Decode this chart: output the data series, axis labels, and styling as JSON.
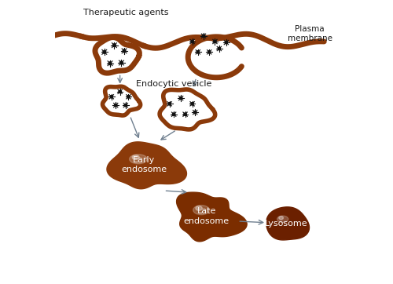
{
  "bg_color": "#ffffff",
  "brown": "#8B3A0A",
  "brown_dark": "#7B2D00",
  "brown_solid": "#6B2000",
  "brown_medium": "#8B3A0A",
  "text_color": "#1a1a1a",
  "arrow_color": "#708090",
  "labels": {
    "therapeutic": "Therapeutic agents",
    "plasma": "Plasma\nmembrane",
    "endocytic": "Endocytic vesicle",
    "early": "Early\nendosome",
    "late": "Late\nendosome",
    "lysosome": "Lysosome"
  },
  "figsize": [
    5.0,
    3.62
  ],
  "dpi": 100
}
